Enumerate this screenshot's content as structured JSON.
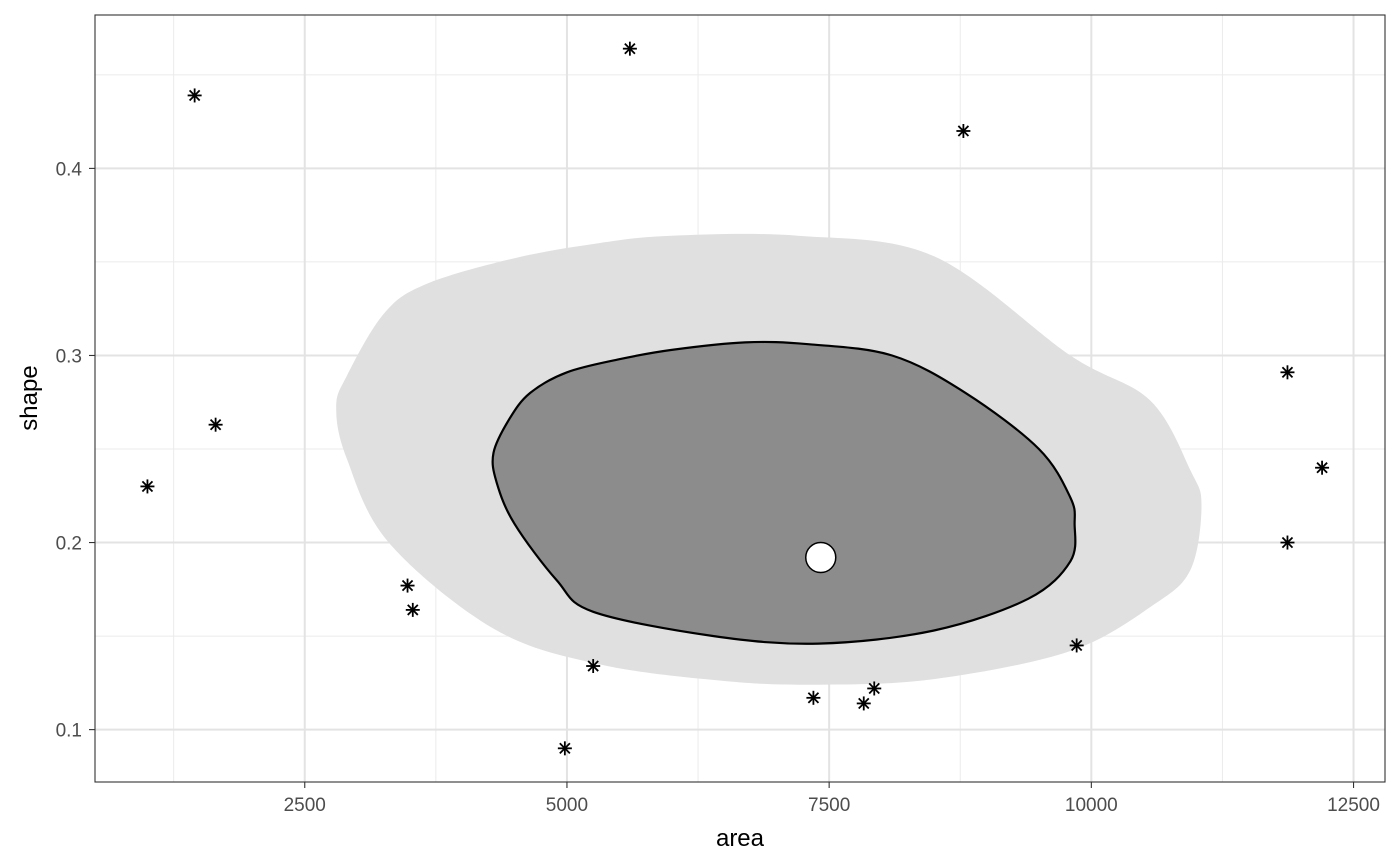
{
  "chart_data": {
    "type": "scatter",
    "xlabel": "area",
    "ylabel": "shape",
    "xlim": [
      500,
      12800
    ],
    "ylim": [
      0.072,
      0.482
    ],
    "x_major_ticks": [
      2500,
      5000,
      7500,
      10000,
      12500
    ],
    "x_minor_ticks": [
      1250,
      3750,
      6250,
      8750,
      11250
    ],
    "y_major_ticks": [
      0.1,
      0.2,
      0.3,
      0.4
    ],
    "y_minor_ticks": [
      0.15,
      0.25,
      0.35,
      0.45
    ],
    "x_tick_labels": [
      "2500",
      "5000",
      "7500",
      "10000",
      "12500"
    ],
    "y_tick_labels": [
      "0.1",
      "0.2",
      "0.3",
      "0.4"
    ],
    "grid": true,
    "theme": "bw",
    "points": [
      {
        "x": 1000,
        "y": 0.23
      },
      {
        "x": 1450,
        "y": 0.439
      },
      {
        "x": 1650,
        "y": 0.263
      },
      {
        "x": 3480,
        "y": 0.177
      },
      {
        "x": 3530,
        "y": 0.164
      },
      {
        "x": 4980,
        "y": 0.09
      },
      {
        "x": 5250,
        "y": 0.134
      },
      {
        "x": 5600,
        "y": 0.464
      },
      {
        "x": 7350,
        "y": 0.117
      },
      {
        "x": 7830,
        "y": 0.114
      },
      {
        "x": 7930,
        "y": 0.122
      },
      {
        "x": 8780,
        "y": 0.42
      },
      {
        "x": 9860,
        "y": 0.145
      },
      {
        "x": 11870,
        "y": 0.291
      },
      {
        "x": 11870,
        "y": 0.2
      },
      {
        "x": 12200,
        "y": 0.24
      }
    ],
    "point_marker": "asterisk",
    "center": {
      "x": 7420,
      "y": 0.192
    },
    "outer_region": {
      "fill": "#e0e0e0",
      "polygon": [
        [
          2800,
          0.272
        ],
        [
          2900,
          0.289
        ],
        [
          3250,
          0.322
        ],
        [
          3650,
          0.338
        ],
        [
          4500,
          0.352
        ],
        [
          5300,
          0.36
        ],
        [
          6000,
          0.364
        ],
        [
          7200,
          0.364
        ],
        [
          8500,
          0.353
        ],
        [
          9800,
          0.3
        ],
        [
          10560,
          0.276
        ],
        [
          10950,
          0.238
        ],
        [
          11050,
          0.22
        ],
        [
          10950,
          0.186
        ],
        [
          10600,
          0.167
        ],
        [
          9800,
          0.142
        ],
        [
          8500,
          0.127
        ],
        [
          7400,
          0.124
        ],
        [
          6500,
          0.126
        ],
        [
          5300,
          0.135
        ],
        [
          4300,
          0.154
        ],
        [
          3300,
          0.2
        ],
        [
          2900,
          0.245
        ]
      ]
    },
    "inner_region": {
      "fill": "#8c8c8c",
      "stroke": "#000000",
      "polygon": [
        [
          4300,
          0.248
        ],
        [
          4450,
          0.266
        ],
        [
          4650,
          0.28
        ],
        [
          5000,
          0.291
        ],
        [
          5500,
          0.298
        ],
        [
          6000,
          0.303
        ],
        [
          6700,
          0.307
        ],
        [
          7300,
          0.306
        ],
        [
          8100,
          0.3
        ],
        [
          8800,
          0.28
        ],
        [
          9500,
          0.25
        ],
        [
          9800,
          0.224
        ],
        [
          9840,
          0.21
        ],
        [
          9800,
          0.19
        ],
        [
          9400,
          0.17
        ],
        [
          8500,
          0.153
        ],
        [
          7400,
          0.146
        ],
        [
          6400,
          0.15
        ],
        [
          5250,
          0.163
        ],
        [
          4900,
          0.18
        ],
        [
          4500,
          0.21
        ],
        [
          4330,
          0.232
        ]
      ]
    }
  }
}
